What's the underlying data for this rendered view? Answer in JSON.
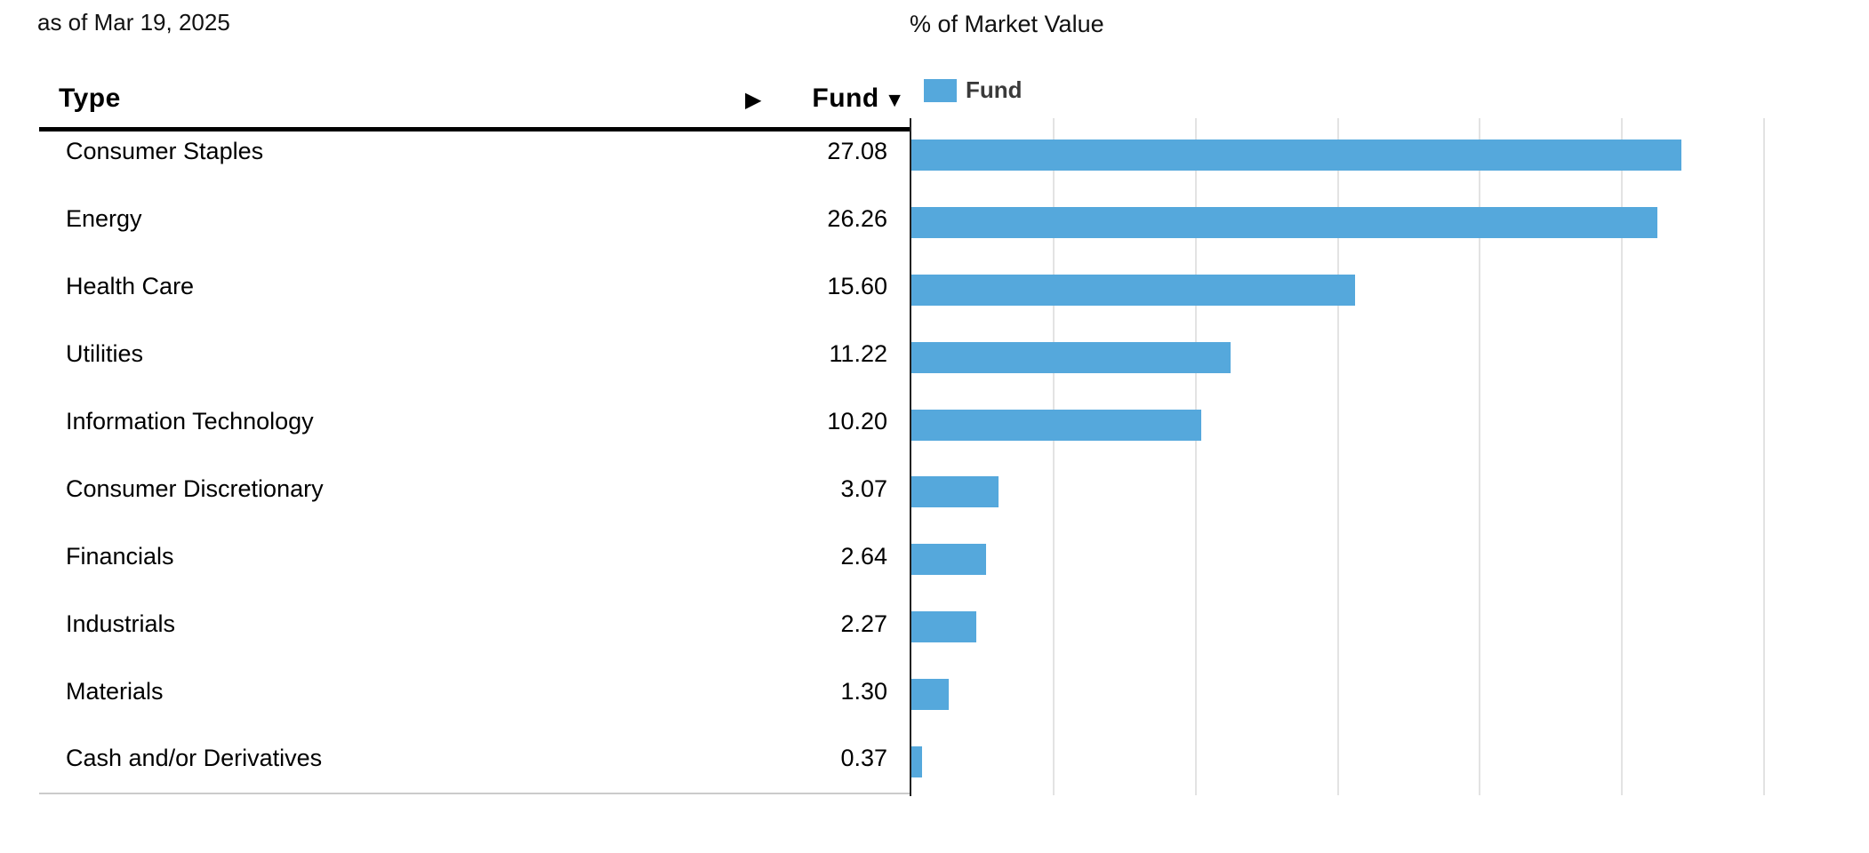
{
  "meta": {
    "as_of": "as of Mar 19, 2025"
  },
  "table": {
    "columns": {
      "type": "Type",
      "fund": "Fund"
    },
    "sort_icon": "▼",
    "expand_icon": "▶"
  },
  "chart": {
    "title": "% of Market Value",
    "legend": {
      "label": "Fund"
    }
  },
  "colors": {
    "bar": "#55a8dc",
    "gridline": "#e3e3e3",
    "axis": "#222222",
    "header_rule": "#000000",
    "table_bottom_rule": "#cbcbcb"
  },
  "chart_data": {
    "type": "bar",
    "orientation": "horizontal",
    "title": "% of Market Value",
    "series_name": "Fund",
    "categories": [
      "Consumer Staples",
      "Energy",
      "Health Care",
      "Utilities",
      "Information Technology",
      "Consumer Discretionary",
      "Financials",
      "Industrials",
      "Materials",
      "Cash and/or Derivatives"
    ],
    "values": [
      27.08,
      26.26,
      15.6,
      11.22,
      10.2,
      3.07,
      2.64,
      2.27,
      1.3,
      0.37
    ],
    "value_decimals": 2,
    "xlim": [
      0,
      30
    ],
    "grid_interval": 5,
    "grid": true,
    "x_axis_labels": false,
    "legend_position": "top-left",
    "bar_color": "#55a8dc"
  }
}
